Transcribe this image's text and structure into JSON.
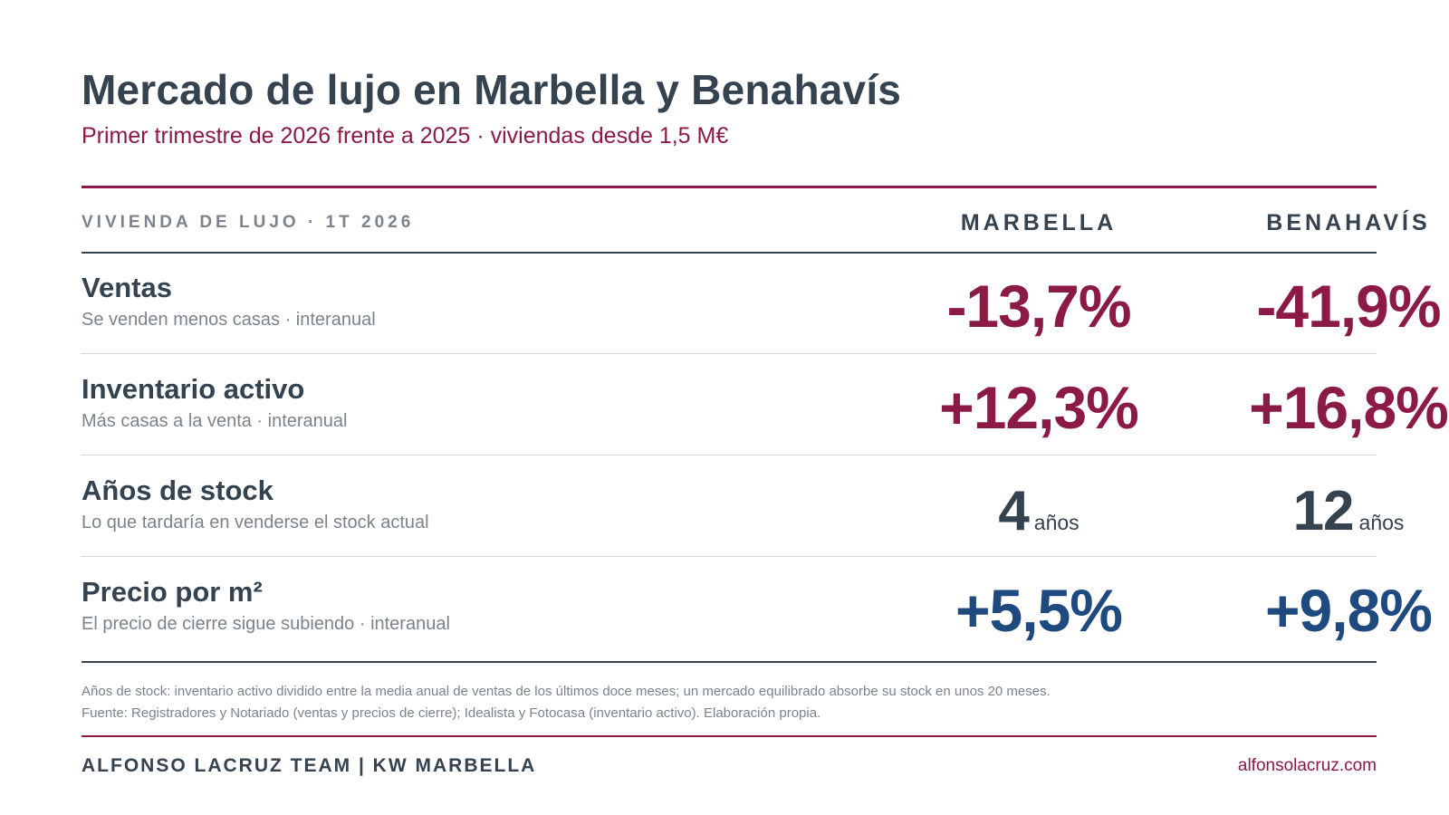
{
  "header": {
    "title": "Mercado de lujo en Marbella y Benahavís",
    "subtitle": "Primer trimestre de 2026 frente a 2025 · viviendas desde 1,5 M€"
  },
  "table": {
    "label": "VIVIENDA DE LUJO · 1T 2026",
    "columns": [
      "MARBELLA",
      "BENAHAVÍS"
    ],
    "rows": [
      {
        "title": "Ventas",
        "subtitle": "Se venden menos casas · interanual",
        "marbella": "-13,7%",
        "benahavis": "-41,9%"
      },
      {
        "title": "Inventario activo",
        "subtitle": "Más casas a la venta · interanual",
        "marbella": "+12,3%",
        "benahavis": "+16,8%"
      },
      {
        "title": "Años de stock",
        "subtitle": "Lo que tardaría en venderse el stock actual",
        "marbella": "4",
        "benahavis": "12",
        "unit": "años"
      },
      {
        "title": "Precio por m²",
        "subtitle": "El precio de cierre sigue subiendo · interanual",
        "marbella": "+5,5%",
        "benahavis": "+9,8%"
      }
    ]
  },
  "notes": {
    "line1": "Años de stock: inventario activo dividido entre la media anual de ventas de los últimos doce meses; un mercado equilibrado absorbe su stock en unos 20 meses.",
    "line2": "Fuente: Registradores y Notariado (ventas y precios de cierre); Idealista y Fotocasa (inventario activo). Elaboración propia."
  },
  "footer": {
    "brand": "ALFONSO LACRUZ TEAM | KW MARBELLA",
    "url": "alfonsolacruz.com"
  },
  "colors": {
    "accent": "#8b1a47",
    "text": "#34434f",
    "price": "#1f4a80",
    "muted": "#7b848c"
  }
}
